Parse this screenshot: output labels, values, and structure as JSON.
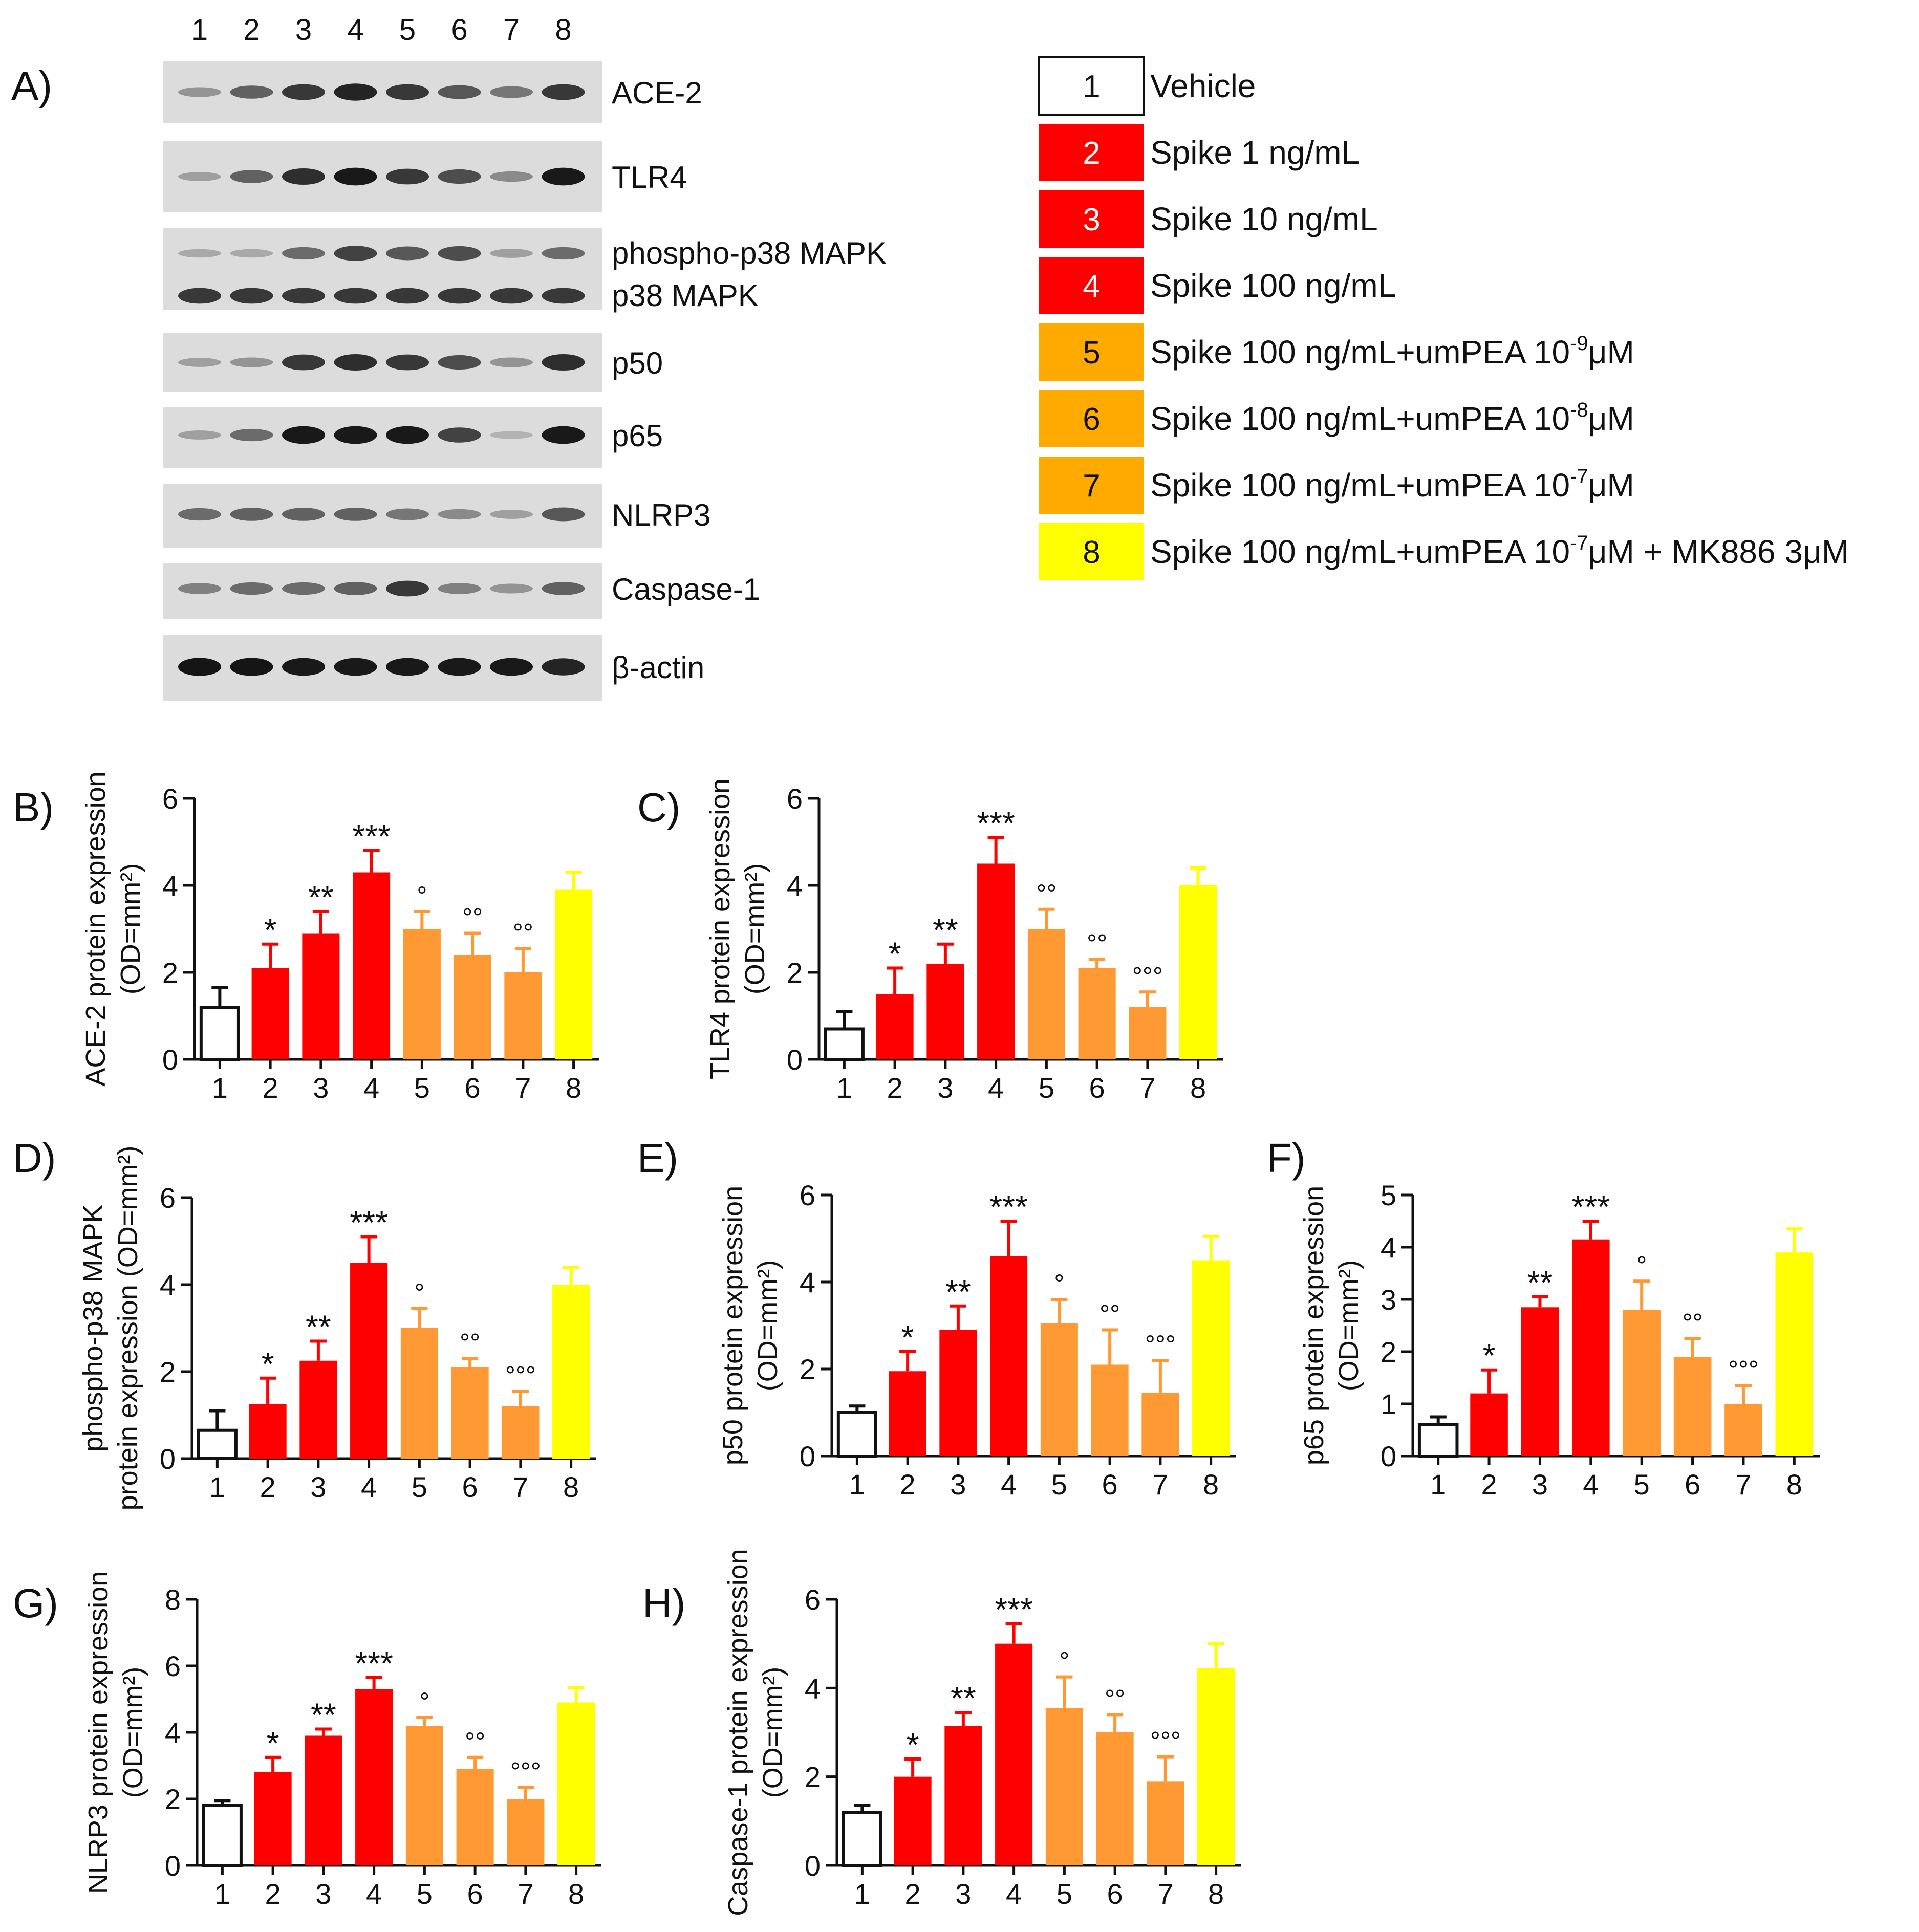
{
  "panel_a": {
    "label": "A)",
    "lanes": [
      "1",
      "2",
      "3",
      "4",
      "5",
      "6",
      "7",
      "8"
    ],
    "blots": [
      {
        "name": "ACE-2",
        "intensity": [
          0.35,
          0.6,
          0.8,
          0.9,
          0.8,
          0.65,
          0.5,
          0.8
        ]
      },
      {
        "name": "TLR4",
        "intensity": [
          0.3,
          0.6,
          0.85,
          0.95,
          0.8,
          0.7,
          0.4,
          0.95
        ]
      },
      {
        "name": "phospho-p38 MAPK",
        "name2": "p38 MAPK",
        "intensity": [
          0.25,
          0.25,
          0.55,
          0.75,
          0.65,
          0.7,
          0.3,
          0.55
        ],
        "intensity2": [
          0.8,
          0.8,
          0.8,
          0.8,
          0.8,
          0.8,
          0.8,
          0.8
        ]
      },
      {
        "name": "p50",
        "intensity": [
          0.3,
          0.35,
          0.8,
          0.85,
          0.8,
          0.7,
          0.35,
          0.85
        ]
      },
      {
        "name": "p65",
        "intensity": [
          0.3,
          0.55,
          0.95,
          0.95,
          0.95,
          0.75,
          0.2,
          0.95
        ]
      },
      {
        "name": "NLRP3",
        "intensity": [
          0.55,
          0.6,
          0.6,
          0.6,
          0.5,
          0.4,
          0.3,
          0.65
        ]
      },
      {
        "name": "Caspase-1",
        "intensity": [
          0.45,
          0.55,
          0.55,
          0.6,
          0.8,
          0.45,
          0.35,
          0.6
        ]
      },
      {
        "name": "β-actin",
        "intensity": [
          0.97,
          0.97,
          0.95,
          0.95,
          0.95,
          0.95,
          0.95,
          0.9
        ]
      }
    ]
  },
  "legend": [
    {
      "num": "1",
      "text": "Vehicle",
      "color": "#ffffff"
    },
    {
      "num": "2",
      "text": "Spike 1 ng/mL",
      "color": "#ff0000"
    },
    {
      "num": "3",
      "text": "Spike 10 ng/mL",
      "color": "#ff0000"
    },
    {
      "num": "4",
      "text": "Spike 100 ng/mL",
      "color": "#ff0000"
    },
    {
      "num": "5",
      "text": "Spike 100 ng/mL+umPEA 10",
      "sup": "-9",
      "suffix": "μM",
      "color": "#ffaa00"
    },
    {
      "num": "6",
      "text": "Spike 100 ng/mL+umPEA 10",
      "sup": "-8",
      "suffix": "μM",
      "color": "#ffaa00"
    },
    {
      "num": "7",
      "text": "Spike 100 ng/mL+umPEA 10",
      "sup": "-7",
      "suffix": "μM",
      "color": "#ffaa00"
    },
    {
      "num": "8",
      "text": "Spike 100 ng/mL+umPEA 10",
      "sup": "-7",
      "suffix": "μM + MK886 3μM",
      "color": "#ffff00"
    }
  ],
  "bar_colors": [
    "#ffffff",
    "#ff0000",
    "#ff0000",
    "#ff0000",
    "#ff9933",
    "#ff9933",
    "#ff9933",
    "#ffff00"
  ],
  "chart_data": [
    {
      "type": "bar",
      "panel": "B)",
      "ylabel": [
        "ACE-2 protein expression",
        "(OD=mm²)"
      ],
      "categories": [
        "1",
        "2",
        "3",
        "4",
        "5",
        "6",
        "7",
        "8"
      ],
      "values": [
        1.2,
        2.1,
        2.9,
        4.3,
        3.0,
        2.4,
        2.0,
        3.9
      ],
      "errors": [
        0.45,
        0.55,
        0.5,
        0.5,
        0.4,
        0.5,
        0.55,
        0.4
      ],
      "annotations": [
        "",
        "*",
        "**",
        "***",
        "°",
        "°°",
        "°°",
        ""
      ],
      "ylim": [
        0,
        6
      ],
      "yticks": [
        0,
        2,
        4,
        6
      ]
    },
    {
      "type": "bar",
      "panel": "C)",
      "ylabel": [
        "TLR4 protein expression",
        "(OD=mm²)"
      ],
      "categories": [
        "1",
        "2",
        "3",
        "4",
        "5",
        "6",
        "7",
        "8"
      ],
      "values": [
        0.7,
        1.5,
        2.2,
        4.5,
        3.0,
        2.1,
        1.2,
        4.0
      ],
      "errors": [
        0.4,
        0.6,
        0.45,
        0.6,
        0.45,
        0.2,
        0.35,
        0.4
      ],
      "annotations": [
        "",
        "*",
        "**",
        "***",
        "°°",
        "°°",
        "°°°",
        ""
      ],
      "ylim": [
        0,
        6
      ],
      "yticks": [
        0,
        2,
        4,
        6
      ]
    },
    {
      "type": "bar",
      "panel": "D)",
      "ylabel": [
        "phospho-p38 MAPK",
        "protein expression (OD=mm²)"
      ],
      "categories": [
        "1",
        "2",
        "3",
        "4",
        "5",
        "6",
        "7",
        "8"
      ],
      "values": [
        0.65,
        1.25,
        2.25,
        4.5,
        3.0,
        2.1,
        1.2,
        4.0
      ],
      "errors": [
        0.45,
        0.6,
        0.45,
        0.6,
        0.45,
        0.2,
        0.35,
        0.4
      ],
      "annotations": [
        "",
        "*",
        "**",
        "***",
        "°",
        "°°",
        "°°°",
        ""
      ],
      "ylim": [
        0,
        6
      ],
      "yticks": [
        0,
        2,
        4,
        6
      ]
    },
    {
      "type": "bar",
      "panel": "E)",
      "ylabel": [
        "p50 protein expression",
        "(OD=mm²)"
      ],
      "categories": [
        "1",
        "2",
        "3",
        "4",
        "5",
        "6",
        "7",
        "8"
      ],
      "values": [
        1.0,
        1.95,
        2.9,
        4.6,
        3.05,
        2.1,
        1.45,
        4.5
      ],
      "errors": [
        0.15,
        0.45,
        0.55,
        0.8,
        0.55,
        0.8,
        0.75,
        0.55
      ],
      "annotations": [
        "",
        "*",
        "**",
        "***",
        "°",
        "°°",
        "°°°",
        ""
      ],
      "ylim": [
        0,
        6
      ],
      "yticks": [
        0,
        2,
        4,
        6
      ]
    },
    {
      "type": "bar",
      "panel": "F)",
      "ylabel": [
        "p65 protein expression",
        "(OD=mm²)"
      ],
      "categories": [
        "1",
        "2",
        "3",
        "4",
        "5",
        "6",
        "7",
        "8"
      ],
      "values": [
        0.6,
        1.2,
        2.85,
        4.15,
        2.8,
        1.9,
        1.0,
        3.9
      ],
      "errors": [
        0.15,
        0.45,
        0.2,
        0.35,
        0.55,
        0.35,
        0.35,
        0.45
      ],
      "annotations": [
        "",
        "*",
        "**",
        "***",
        "°",
        "°°",
        "°°°",
        ""
      ],
      "ylim": [
        0,
        5
      ],
      "yticks": [
        0,
        1,
        2,
        3,
        4,
        5
      ]
    },
    {
      "type": "bar",
      "panel": "G)",
      "ylabel": [
        "NLRP3 protein expression",
        "(OD=mm²)"
      ],
      "categories": [
        "1",
        "2",
        "3",
        "4",
        "5",
        "6",
        "7",
        "8"
      ],
      "values": [
        1.8,
        2.8,
        3.9,
        5.3,
        4.2,
        2.9,
        2.0,
        4.9
      ],
      "errors": [
        0.15,
        0.45,
        0.2,
        0.35,
        0.25,
        0.35,
        0.35,
        0.45
      ],
      "annotations": [
        "",
        "*",
        "**",
        "***",
        "°",
        "°°",
        "°°°",
        ""
      ],
      "ylim": [
        0,
        8
      ],
      "yticks": [
        0,
        2,
        4,
        6,
        8
      ]
    },
    {
      "type": "bar",
      "panel": "H)",
      "ylabel": [
        "Caspase-1 protein expression",
        "(OD=mm²)"
      ],
      "categories": [
        "1",
        "2",
        "3",
        "4",
        "5",
        "6",
        "7",
        "8"
      ],
      "values": [
        1.2,
        2.0,
        3.15,
        5.0,
        3.55,
        3.0,
        1.9,
        4.45
      ],
      "errors": [
        0.15,
        0.4,
        0.3,
        0.45,
        0.7,
        0.4,
        0.55,
        0.55
      ],
      "annotations": [
        "",
        "*",
        "**",
        "***",
        "°",
        "°°",
        "°°°",
        ""
      ],
      "ylim": [
        0,
        6
      ],
      "yticks": [
        0,
        2,
        4,
        6
      ]
    }
  ]
}
